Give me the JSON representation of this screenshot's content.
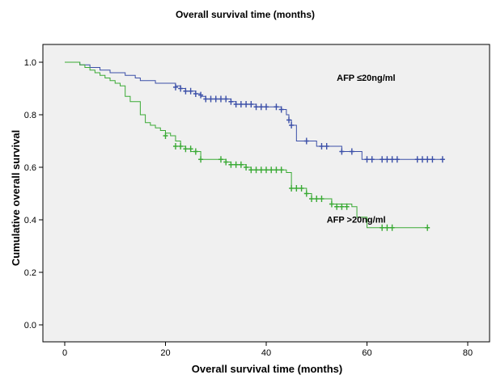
{
  "chart_data": {
    "type": "line",
    "title": "Overall survival time (months)",
    "xlabel": "Overall survival time (months)",
    "ylabel": "Cumulative overall survival",
    "xlim": [
      0,
      80
    ],
    "ylim": [
      0.0,
      1.0
    ],
    "x_ticks": [
      0,
      20,
      40,
      60,
      80
    ],
    "y_ticks": [
      0.0,
      0.2,
      0.4,
      0.6,
      0.8,
      1.0
    ],
    "x_tick_labels": [
      "0",
      "20",
      "40",
      "60",
      "80"
    ],
    "y_tick_labels": [
      "0.0",
      "0.2",
      "0.4",
      "0.6",
      "0.8",
      "1.0"
    ],
    "grid": false,
    "legend": "none",
    "plot_background": "#f0f0f0",
    "series": [
      {
        "name": "AFP ≤20ng/ml",
        "color": "#3b4fa8",
        "step": [
          [
            0,
            1.0
          ],
          [
            3,
            0.99
          ],
          [
            5,
            0.98
          ],
          [
            7,
            0.97
          ],
          [
            9,
            0.96
          ],
          [
            12,
            0.95
          ],
          [
            14,
            0.94
          ],
          [
            15,
            0.93
          ],
          [
            18,
            0.92
          ],
          [
            22,
            0.91
          ],
          [
            23,
            0.9
          ],
          [
            24,
            0.89
          ],
          [
            26,
            0.88
          ],
          [
            27,
            0.87
          ],
          [
            28,
            0.86
          ],
          [
            33,
            0.85
          ],
          [
            34,
            0.84
          ],
          [
            38,
            0.83
          ],
          [
            43,
            0.82
          ],
          [
            44,
            0.8
          ],
          [
            44.5,
            0.78
          ],
          [
            45,
            0.76
          ],
          [
            46,
            0.7
          ],
          [
            50,
            0.68
          ],
          [
            55,
            0.66
          ],
          [
            59,
            0.63
          ],
          [
            75,
            0.63
          ]
        ],
        "censored": [
          [
            22,
            0.905
          ],
          [
            23,
            0.9
          ],
          [
            24,
            0.89
          ],
          [
            25,
            0.89
          ],
          [
            26,
            0.88
          ],
          [
            27,
            0.875
          ],
          [
            28,
            0.86
          ],
          [
            29,
            0.86
          ],
          [
            30,
            0.86
          ],
          [
            31,
            0.86
          ],
          [
            32,
            0.86
          ],
          [
            33,
            0.85
          ],
          [
            34,
            0.84
          ],
          [
            35,
            0.84
          ],
          [
            36,
            0.84
          ],
          [
            37,
            0.84
          ],
          [
            38,
            0.83
          ],
          [
            39,
            0.83
          ],
          [
            40,
            0.83
          ],
          [
            42,
            0.83
          ],
          [
            43,
            0.82
          ],
          [
            44.5,
            0.78
          ],
          [
            45,
            0.76
          ],
          [
            48,
            0.7
          ],
          [
            51,
            0.68
          ],
          [
            52,
            0.68
          ],
          [
            55,
            0.66
          ],
          [
            57,
            0.66
          ],
          [
            60,
            0.63
          ],
          [
            61,
            0.63
          ],
          [
            63,
            0.63
          ],
          [
            64,
            0.63
          ],
          [
            65,
            0.63
          ],
          [
            66,
            0.63
          ],
          [
            70,
            0.63
          ],
          [
            71,
            0.63
          ],
          [
            72,
            0.63
          ],
          [
            73,
            0.63
          ],
          [
            75,
            0.63
          ]
        ]
      },
      {
        "name": "AFP >20ng/ml",
        "color": "#3aaa35",
        "step": [
          [
            0,
            1.0
          ],
          [
            3,
            0.99
          ],
          [
            4,
            0.98
          ],
          [
            5,
            0.97
          ],
          [
            6,
            0.96
          ],
          [
            7,
            0.95
          ],
          [
            8,
            0.94
          ],
          [
            9,
            0.93
          ],
          [
            10,
            0.92
          ],
          [
            11,
            0.91
          ],
          [
            12,
            0.87
          ],
          [
            13,
            0.85
          ],
          [
            15,
            0.8
          ],
          [
            16,
            0.77
          ],
          [
            17,
            0.76
          ],
          [
            18,
            0.75
          ],
          [
            19,
            0.74
          ],
          [
            20,
            0.73
          ],
          [
            21,
            0.72
          ],
          [
            22,
            0.7
          ],
          [
            23,
            0.68
          ],
          [
            24,
            0.67
          ],
          [
            25,
            0.66
          ],
          [
            27,
            0.63
          ],
          [
            32,
            0.62
          ],
          [
            33,
            0.61
          ],
          [
            36,
            0.6
          ],
          [
            37,
            0.59
          ],
          [
            44,
            0.58
          ],
          [
            45,
            0.52
          ],
          [
            48,
            0.5
          ],
          [
            49,
            0.48
          ],
          [
            53,
            0.46
          ],
          [
            57,
            0.45
          ],
          [
            58,
            0.41
          ],
          [
            60,
            0.37
          ],
          [
            72,
            0.37
          ]
        ],
        "censored": [
          [
            20,
            0.72
          ],
          [
            22,
            0.68
          ],
          [
            23,
            0.68
          ],
          [
            24,
            0.67
          ],
          [
            25,
            0.67
          ],
          [
            26,
            0.66
          ],
          [
            27,
            0.63
          ],
          [
            31,
            0.63
          ],
          [
            32,
            0.62
          ],
          [
            33,
            0.61
          ],
          [
            34,
            0.61
          ],
          [
            35,
            0.61
          ],
          [
            36,
            0.6
          ],
          [
            37,
            0.59
          ],
          [
            38,
            0.59
          ],
          [
            39,
            0.59
          ],
          [
            40,
            0.59
          ],
          [
            41,
            0.59
          ],
          [
            42,
            0.59
          ],
          [
            43,
            0.59
          ],
          [
            45,
            0.52
          ],
          [
            46,
            0.52
          ],
          [
            47,
            0.52
          ],
          [
            48,
            0.5
          ],
          [
            49,
            0.48
          ],
          [
            50,
            0.48
          ],
          [
            51,
            0.48
          ],
          [
            53,
            0.46
          ],
          [
            54,
            0.45
          ],
          [
            55,
            0.45
          ],
          [
            56,
            0.45
          ],
          [
            63,
            0.37
          ],
          [
            64,
            0.37
          ],
          [
            65,
            0.37
          ],
          [
            72,
            0.37
          ]
        ]
      }
    ],
    "annotations": [
      {
        "text": "AFP ≤20ng/ml",
        "x": 54,
        "y": 0.93
      },
      {
        "text": "AFP >20ng/ml",
        "x": 52,
        "y": 0.39
      }
    ]
  }
}
